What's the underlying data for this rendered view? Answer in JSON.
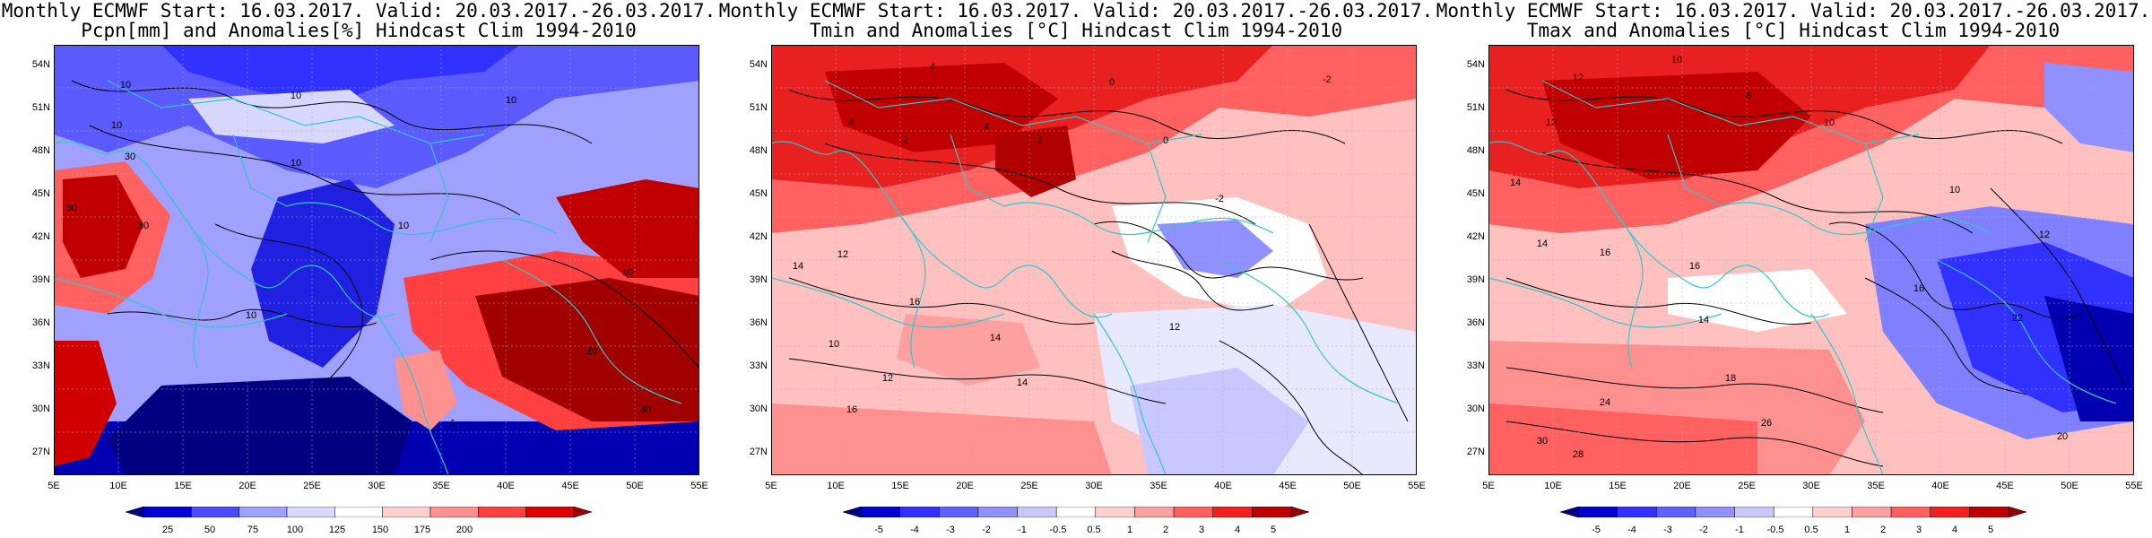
{
  "panels": [
    {
      "title_line1": "Monthly ECMWF Start: 16.03.2017. Valid: 20.03.2017.-26.03.2017.",
      "title_line2": "Pcpn[mm] and Anomalies[%] Hindcast Clim 1994-2010",
      "variable": "precipitation",
      "colorbar": {
        "labels": [
          "25",
          "50",
          "75",
          "100",
          "125",
          "150",
          "175",
          "200"
        ],
        "colors": [
          "#000080",
          "#0000d8",
          "#4a4aff",
          "#a0a0ff",
          "#d8d8ff",
          "#ffffff",
          "#ffd0d0",
          "#ff9090",
          "#ff4040",
          "#e00000",
          "#a00000"
        ]
      }
    },
    {
      "title_line1": "Monthly ECMWF Start: 16.03.2017. Valid: 20.03.2017.-26.03.2017.",
      "title_line2": "Tmin and Anomalies [°C] Hindcast Clim 1994-2010",
      "variable": "tmin",
      "colorbar": {
        "labels": [
          "-5",
          "-4",
          "-3",
          "-2",
          "-1",
          "-0.5",
          "0.5",
          "1",
          "2",
          "3",
          "4",
          "5"
        ],
        "colors": [
          "#000080",
          "#0000d0",
          "#3030ff",
          "#6060ff",
          "#9090ff",
          "#c8c8ff",
          "#ffffff",
          "#ffd0d0",
          "#ffa0a0",
          "#ff6060",
          "#f02020",
          "#c00000",
          "#900000"
        ]
      }
    },
    {
      "title_line1": "Monthly ECMWF Start: 16.03.2017. Valid: 20.03.2017.-26.03.2017.",
      "title_line2": "Tmax and Anomalies [°C] Hindcast Clim 1994-2010",
      "variable": "tmax",
      "colorbar": {
        "labels": [
          "-5",
          "-4",
          "-3",
          "-2",
          "-1",
          "-0.5",
          "0.5",
          "1",
          "2",
          "3",
          "4",
          "5"
        ],
        "colors": [
          "#000080",
          "#0000d0",
          "#3030ff",
          "#6060ff",
          "#9090ff",
          "#c8c8ff",
          "#ffffff",
          "#ffd0d0",
          "#ffa0a0",
          "#ff6060",
          "#f02020",
          "#c00000",
          "#900000"
        ]
      }
    }
  ],
  "axes": {
    "lat_labels": [
      "54N",
      "51N",
      "48N",
      "45N",
      "42N",
      "39N",
      "36N",
      "33N",
      "30N",
      "27N"
    ],
    "lon_labels": [
      "5E",
      "10E",
      "15E",
      "20E",
      "25E",
      "30E",
      "35E",
      "40E",
      "45E",
      "50E",
      "55E"
    ]
  },
  "contour_labels": {
    "p0": [
      "10",
      "10",
      "10",
      "10",
      "10",
      "30",
      "50",
      "30",
      "10",
      "10",
      "20",
      "30",
      "10",
      "1"
    ],
    "p1": [
      "4",
      "4",
      "2",
      "0",
      "-2",
      "4",
      "2",
      "0",
      "-2",
      "14",
      "12",
      "16",
      "14",
      "10",
      "12",
      "16",
      "14",
      "12"
    ],
    "p2": [
      "10",
      "12",
      "12",
      "8",
      "10",
      "14",
      "16",
      "14",
      "16",
      "10",
      "12",
      "14",
      "16",
      "18",
      "22",
      "24",
      "26",
      "28",
      "30",
      "20"
    ]
  },
  "colors": {
    "coast": "#30c8c8",
    "contour": "#000000"
  }
}
